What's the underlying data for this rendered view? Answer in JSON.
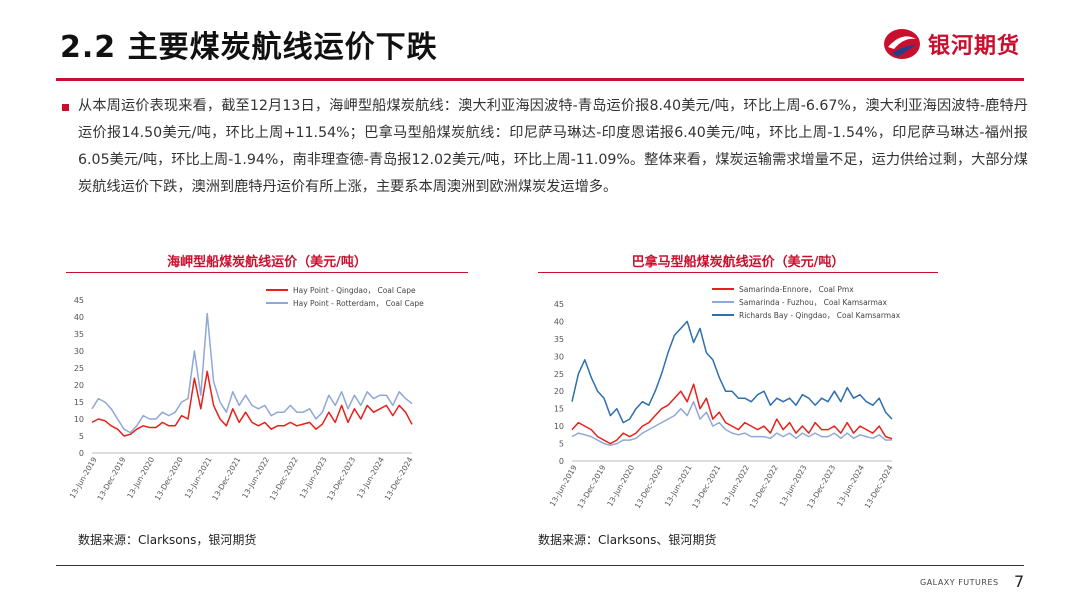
{
  "header": {
    "title": "2.2 主要煤炭航线运价下跌",
    "logo_text": "银河期货"
  },
  "paragraph": "从本周运价表现来看，截至12月13日，海岬型船煤炭航线：澳大利亚海因波特-青岛运价报8.40美元/吨，环比上周-6.67%，澳大利亚海因波特-鹿特丹运价报14.50美元/吨，环比上周+11.54%；巴拿马型船煤炭航线：印尼萨马琳达-印度恩诺报6.40美元/吨，环比上周-1.54%，印尼萨马琳达-福州报6.05美元/吨，环比上周-1.94%，南非理查德-青岛报12.02美元/吨，环比上周-11.09%。整体来看，煤炭运输需求增量不足，运力供给过剩，大部分煤炭航线运价下跌，澳洲到鹿特丹运价有所上涨，主要系本周澳洲到欧洲煤炭发运增多。",
  "footer": {
    "brand": "GALAXY FUTURES",
    "page": "7"
  },
  "colors": {
    "red": "#e8201a",
    "lightblue": "#8fa8d6",
    "darkblue": "#2e6fad",
    "brand": "#c8102e"
  },
  "chart_data": [
    {
      "type": "line",
      "title": "海岬型船煤炭航线运价（美元/吨）",
      "source": "数据来源：Clarksons，银河期货",
      "ylim": [
        0,
        45
      ],
      "yticks": [
        "0",
        "5",
        "10",
        "15",
        "20",
        "25",
        "30",
        "35",
        "40",
        "45"
      ],
      "xticks": [
        "13-Jun-2019",
        "13-Dec-2019",
        "13-Jun-2020",
        "13-Dec-2020",
        "13-Jun-2021",
        "13-Dec-2021",
        "13-Jun-2022",
        "13-Dec-2022",
        "13-Jun-2023",
        "13-Dec-2023",
        "13-Jun-2024",
        "13-Dec-2024"
      ],
      "legend_position": "top-right",
      "series": [
        {
          "name": "Hay Point - Qingdao， Coal Cape",
          "color": "#e8201a",
          "values": [
            9,
            10,
            9.5,
            8,
            7,
            5,
            5.5,
            7,
            8,
            7.5,
            7.5,
            9,
            8,
            8,
            11,
            10,
            22,
            13,
            24,
            14,
            10,
            8,
            13,
            9,
            12,
            9,
            8,
            9,
            7,
            8,
            8,
            9,
            8,
            8.5,
            9,
            7,
            8.5,
            12,
            9,
            14,
            9,
            13,
            10,
            14,
            12,
            13,
            14,
            11,
            14,
            12,
            8.4
          ]
        },
        {
          "name": "Hay Point - Rotterdam， Coal Cape",
          "color": "#8fa8d6",
          "values": [
            13,
            16,
            15,
            13,
            10,
            7,
            6,
            8,
            11,
            10,
            10,
            12,
            11,
            12,
            15,
            16,
            30,
            17,
            41,
            21,
            15,
            12,
            18,
            14,
            17,
            14,
            13,
            14,
            11,
            12,
            12,
            14,
            12,
            12,
            13,
            10,
            12,
            17,
            14,
            18,
            13,
            17,
            14,
            18,
            16,
            17,
            17,
            14,
            18,
            16,
            14.5
          ]
        }
      ]
    },
    {
      "type": "line",
      "title": "巴拿马型船煤炭航线运价（美元/吨）",
      "source": "数据来源：Clarksons、银河期货",
      "ylim": [
        0,
        45
      ],
      "yticks": [
        "0",
        "5",
        "10",
        "15",
        "20",
        "25",
        "30",
        "35",
        "40",
        "45"
      ],
      "xticks": [
        "13-Jun-2019",
        "13-Dec-2019",
        "13-Jun-2020",
        "13-Dec-2020",
        "13-Jun-2021",
        "13-Dec-2021",
        "13-Jun-2022",
        "13-Dec-2022",
        "13-Jun-2023",
        "13-Dec-2023",
        "13-Jun-2024",
        "13-Dec-2024"
      ],
      "legend_position": "top-left",
      "series": [
        {
          "name": "Samarinda-Ennore， Coal Pmx",
          "color": "#e8201a",
          "values": [
            9,
            11,
            10,
            9,
            7,
            6,
            5,
            6,
            8,
            7,
            8,
            10,
            11,
            13,
            15,
            16,
            18,
            20,
            17,
            22,
            15,
            18,
            12,
            14,
            11,
            10,
            9,
            11,
            10,
            9,
            10,
            8,
            12,
            9,
            11,
            8,
            10,
            8,
            11,
            9,
            9,
            10,
            8,
            11,
            8,
            10,
            9,
            8,
            10,
            7,
            6.4
          ]
        },
        {
          "name": "Samarinda - Fuzhou， Coal Kamsarmax",
          "color": "#8fa8d6",
          "values": [
            7,
            8,
            7.5,
            7,
            6,
            5,
            4.5,
            5,
            6,
            6,
            6.5,
            8,
            9,
            10,
            11,
            12,
            13,
            15,
            13,
            17,
            12,
            14,
            10,
            11,
            9,
            8,
            7.5,
            8,
            7,
            7,
            7,
            6.5,
            8,
            7,
            8,
            6.5,
            8,
            7,
            8,
            7,
            7,
            8,
            6.5,
            8,
            6.5,
            7.5,
            7,
            6.5,
            7.5,
            6,
            6.05
          ]
        },
        {
          "name": "Richards Bay - Qingdao， Coal Kamsarmax",
          "color": "#2e6fad",
          "values": [
            17,
            25,
            29,
            24,
            20,
            18,
            13,
            15,
            11,
            12,
            15,
            17,
            16,
            20,
            25,
            31,
            36,
            38,
            40,
            34,
            38,
            31,
            29,
            24,
            20,
            20,
            18,
            18,
            17,
            19,
            20,
            16,
            18,
            17,
            18,
            16,
            19,
            18,
            16,
            18,
            17,
            20,
            17,
            21,
            18,
            19,
            17,
            16,
            18,
            14,
            12
          ]
        }
      ]
    }
  ]
}
